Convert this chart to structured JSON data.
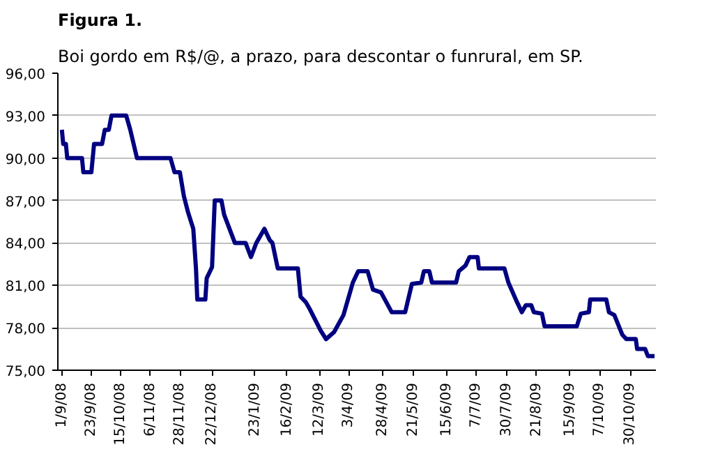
{
  "chart_data": {
    "type": "line",
    "title": "Figura 1.",
    "subtitle": "Boi gordo em R$/@, a prazo, para descontar o funrural, em SP.",
    "x": [
      "2008-09-01",
      "2008-09-02",
      "2008-09-04",
      "2008-09-05",
      "2008-09-16",
      "2008-09-17",
      "2008-09-23",
      "2008-09-25",
      "2008-10-01",
      "2008-10-03",
      "2008-10-06",
      "2008-10-08",
      "2008-10-19",
      "2008-10-22",
      "2008-10-27",
      "2008-11-21",
      "2008-11-24",
      "2008-11-28",
      "2008-12-01",
      "2008-12-04",
      "2008-12-08",
      "2008-12-10",
      "2008-12-11",
      "2008-12-17",
      "2008-12-18",
      "2008-12-22",
      "2008-12-24",
      "2008-12-29",
      "2008-12-31",
      "2009-01-08",
      "2009-01-16",
      "2009-01-20",
      "2009-01-24",
      "2009-01-30",
      "2009-02-03",
      "2009-02-05",
      "2009-02-09",
      "2009-02-24",
      "2009-02-26",
      "2009-03-02",
      "2009-03-05",
      "2009-03-13",
      "2009-03-17",
      "2009-03-23",
      "2009-03-30",
      "2009-04-06",
      "2009-04-10",
      "2009-04-17",
      "2009-04-21",
      "2009-04-27",
      "2009-05-05",
      "2009-05-15",
      "2009-05-20",
      "2009-05-27",
      "2009-05-29",
      "2009-06-02",
      "2009-06-04",
      "2009-06-22",
      "2009-06-24",
      "2009-06-29",
      "2009-07-02",
      "2009-07-08",
      "2009-07-09",
      "2009-07-28",
      "2009-07-31",
      "2009-08-06",
      "2009-08-10",
      "2009-08-13",
      "2009-08-17",
      "2009-08-19",
      "2009-08-25",
      "2009-08-27",
      "2009-09-20",
      "2009-09-23",
      "2009-09-29",
      "2009-09-30",
      "2009-10-12",
      "2009-10-14",
      "2009-10-18",
      "2009-10-24",
      "2009-10-27",
      "2009-11-03",
      "2009-11-04",
      "2009-11-10",
      "2009-11-12",
      "2009-11-17"
    ],
    "series": [
      {
        "color": "#000080",
        "values": [
          92,
          91,
          91,
          90,
          90,
          89,
          89,
          91,
          91,
          92,
          92,
          93,
          93,
          92,
          90,
          90,
          89,
          89,
          87.3,
          86.2,
          85,
          82.2,
          80,
          80,
          81.5,
          82.3,
          87,
          87,
          86,
          84,
          84,
          83,
          84,
          85,
          84.2,
          84,
          82.2,
          82.2,
          80.2,
          79.8,
          79.3,
          77.8,
          77.2,
          77.7,
          78.9,
          81.2,
          82,
          82,
          80.7,
          80.5,
          79.1,
          79.1,
          81.1,
          81.2,
          82,
          82,
          81.2,
          81.2,
          82,
          82.4,
          83,
          83,
          82.2,
          82.2,
          81.2,
          79.9,
          79.1,
          79.6,
          79.6,
          79.1,
          79,
          78.1,
          78.1,
          79,
          79.1,
          80,
          80,
          79.1,
          78.9,
          77.5,
          77.2,
          77.2,
          76.5,
          76.5,
          76,
          76
        ]
      }
    ],
    "xlim": [
      "2008-08-29",
      "2009-11-18"
    ],
    "xticks": [
      {
        "value": "2008-09-01",
        "label": "1/9/08"
      },
      {
        "value": "2008-09-23",
        "label": "23/9/08"
      },
      {
        "value": "2008-10-15",
        "label": "15/10/08"
      },
      {
        "value": "2008-11-06",
        "label": "6/11/08"
      },
      {
        "value": "2008-11-28",
        "label": "28/11/08"
      },
      {
        "value": "2008-12-22",
        "label": "22/12/08"
      },
      {
        "value": "2009-01-23",
        "label": "23/1/09"
      },
      {
        "value": "2009-02-16",
        "label": "16/2/09"
      },
      {
        "value": "2009-03-12",
        "label": "12/3/09"
      },
      {
        "value": "2009-04-03",
        "label": "3/4/09"
      },
      {
        "value": "2009-04-28",
        "label": "28/4/09"
      },
      {
        "value": "2009-05-21",
        "label": "21/5/09"
      },
      {
        "value": "2009-06-15",
        "label": "15/6/09"
      },
      {
        "value": "2009-07-07",
        "label": "7/7/09"
      },
      {
        "value": "2009-07-30",
        "label": "30/7/09"
      },
      {
        "value": "2009-08-21",
        "label": "21/8/09"
      },
      {
        "value": "2009-09-15",
        "label": "15/9/09"
      },
      {
        "value": "2009-10-07",
        "label": "7/10/09"
      },
      {
        "value": "2009-10-30",
        "label": "30/10/09"
      }
    ],
    "ylim": [
      75,
      96
    ],
    "yticks": [
      {
        "value": 75,
        "label": "75,00"
      },
      {
        "value": 78,
        "label": "78,00"
      },
      {
        "value": 81,
        "label": "81,00"
      },
      {
        "value": 84,
        "label": "84,00"
      },
      {
        "value": 87,
        "label": "87,00"
      },
      {
        "value": 90,
        "label": "90,00"
      },
      {
        "value": 93,
        "label": "93,00"
      },
      {
        "value": 96,
        "label": "96,00"
      }
    ],
    "grid": "y",
    "marker": "none",
    "line_style": "solid"
  }
}
